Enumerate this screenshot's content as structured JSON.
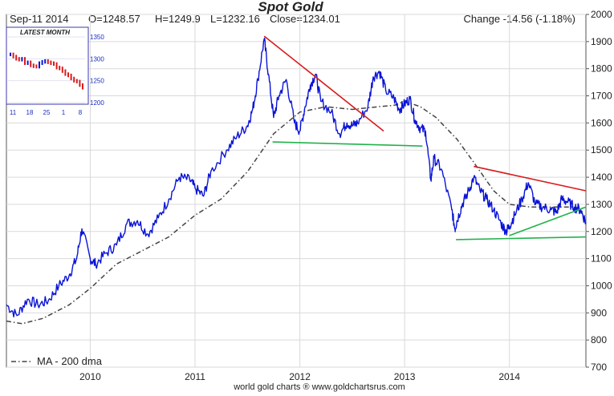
{
  "colors": {
    "price": "#0a14d6",
    "ma": "#444444",
    "resistance": "#d81b1b",
    "support": "#22b24c",
    "title": "#1a2dbf",
    "grid": "#d9d9d9",
    "inset_border": "#3a3ab0"
  },
  "header": {
    "title": "Spot Gold",
    "date": "Sep-11  2014",
    "open": "O=1248.57",
    "high": "H=1249.9",
    "low": "L=1232.16",
    "close": "Close=1234.01",
    "change": "Change -14.56 (-1.18%)"
  },
  "legend": {
    "ma_label": "MA - 200 dma"
  },
  "footer": {
    "credit": "world gold charts ® www.goldchartsrus.com"
  },
  "chart_data": {
    "type": "line",
    "title": "Spot Gold",
    "xlim": [
      2009.2,
      2014.73
    ],
    "ylim": [
      700,
      2000
    ],
    "y_ticks": [
      700,
      800,
      900,
      1000,
      1100,
      1200,
      1300,
      1400,
      1500,
      1600,
      1700,
      1800,
      1900,
      2000
    ],
    "x_tick_labels": [
      {
        "label": "2010",
        "x": 2010.0
      },
      {
        "label": "2011",
        "x": 2011.0
      },
      {
        "label": "2012",
        "x": 2012.0
      },
      {
        "label": "2013",
        "x": 2013.0
      },
      {
        "label": "2014",
        "x": 2014.0
      }
    ],
    "grid": true,
    "series": [
      {
        "kind": "price",
        "points": [
          [
            2009.2,
            930
          ],
          [
            2009.3,
            890
          ],
          [
            2009.4,
            950
          ],
          [
            2009.5,
            930
          ],
          [
            2009.6,
            945
          ],
          [
            2009.7,
            1000
          ],
          [
            2009.8,
            1040
          ],
          [
            2009.87,
            1100
          ],
          [
            2009.92,
            1210
          ],
          [
            2010.0,
            1100
          ],
          [
            2010.05,
            1080
          ],
          [
            2010.15,
            1120
          ],
          [
            2010.25,
            1150
          ],
          [
            2010.35,
            1230
          ],
          [
            2010.45,
            1240
          ],
          [
            2010.55,
            1190
          ],
          [
            2010.65,
            1250
          ],
          [
            2010.75,
            1320
          ],
          [
            2010.85,
            1400
          ],
          [
            2010.95,
            1390
          ],
          [
            2011.0,
            1360
          ],
          [
            2011.08,
            1330
          ],
          [
            2011.15,
            1420
          ],
          [
            2011.3,
            1500
          ],
          [
            2011.4,
            1550
          ],
          [
            2011.5,
            1590
          ],
          [
            2011.55,
            1650
          ],
          [
            2011.6,
            1760
          ],
          [
            2011.66,
            1910
          ],
          [
            2011.7,
            1780
          ],
          [
            2011.75,
            1620
          ],
          [
            2011.8,
            1700
          ],
          [
            2011.87,
            1760
          ],
          [
            2011.95,
            1600
          ],
          [
            2012.0,
            1570
          ],
          [
            2012.05,
            1660
          ],
          [
            2012.1,
            1740
          ],
          [
            2012.15,
            1780
          ],
          [
            2012.2,
            1680
          ],
          [
            2012.3,
            1640
          ],
          [
            2012.38,
            1560
          ],
          [
            2012.45,
            1600
          ],
          [
            2012.5,
            1590
          ],
          [
            2012.55,
            1600
          ],
          [
            2012.65,
            1660
          ],
          [
            2012.7,
            1770
          ],
          [
            2012.76,
            1790
          ],
          [
            2012.82,
            1720
          ],
          [
            2012.9,
            1690
          ],
          [
            2012.95,
            1650
          ],
          [
            2013.0,
            1670
          ],
          [
            2013.05,
            1690
          ],
          [
            2013.1,
            1610
          ],
          [
            2013.15,
            1580
          ],
          [
            2013.2,
            1570
          ],
          [
            2013.25,
            1390
          ],
          [
            2013.28,
            1470
          ],
          [
            2013.35,
            1430
          ],
          [
            2013.45,
            1280
          ],
          [
            2013.48,
            1210
          ],
          [
            2013.5,
            1240
          ],
          [
            2013.55,
            1300
          ],
          [
            2013.6,
            1340
          ],
          [
            2013.66,
            1400
          ],
          [
            2013.72,
            1350
          ],
          [
            2013.78,
            1320
          ],
          [
            2013.85,
            1280
          ],
          [
            2013.92,
            1230
          ],
          [
            2013.97,
            1200
          ],
          [
            2014.0,
            1220
          ],
          [
            2014.05,
            1260
          ],
          [
            2014.12,
            1320
          ],
          [
            2014.18,
            1380
          ],
          [
            2014.25,
            1300
          ],
          [
            2014.32,
            1290
          ],
          [
            2014.4,
            1280
          ],
          [
            2014.45,
            1270
          ],
          [
            2014.5,
            1320
          ],
          [
            2014.55,
            1310
          ],
          [
            2014.62,
            1290
          ],
          [
            2014.68,
            1280
          ],
          [
            2014.73,
            1234
          ]
        ]
      },
      {
        "kind": "ma",
        "name": "MA - 200 dma",
        "points": [
          [
            2009.2,
            870
          ],
          [
            2009.35,
            860
          ],
          [
            2009.55,
            880
          ],
          [
            2009.8,
            930
          ],
          [
            2010.0,
            990
          ],
          [
            2010.25,
            1080
          ],
          [
            2010.5,
            1130
          ],
          [
            2010.75,
            1180
          ],
          [
            2011.0,
            1260
          ],
          [
            2011.25,
            1320
          ],
          [
            2011.5,
            1420
          ],
          [
            2011.75,
            1560
          ],
          [
            2012.0,
            1640
          ],
          [
            2012.25,
            1660
          ],
          [
            2012.5,
            1650
          ],
          [
            2012.75,
            1660
          ],
          [
            2012.9,
            1665
          ],
          [
            2013.0,
            1680
          ],
          [
            2013.15,
            1660
          ],
          [
            2013.3,
            1620
          ],
          [
            2013.5,
            1540
          ],
          [
            2013.65,
            1460
          ],
          [
            2013.85,
            1350
          ],
          [
            2014.0,
            1300
          ],
          [
            2014.2,
            1290
          ],
          [
            2014.4,
            1290
          ],
          [
            2014.6,
            1290
          ],
          [
            2014.73,
            1285
          ]
        ]
      }
    ],
    "trendlines": [
      {
        "kind": "resistance",
        "from": [
          2011.66,
          1920
        ],
        "to": [
          2012.8,
          1570
        ]
      },
      {
        "kind": "support",
        "from": [
          2011.74,
          1530
        ],
        "to": [
          2013.17,
          1515
        ]
      },
      {
        "kind": "resistance",
        "from": [
          2013.66,
          1440
        ],
        "to": [
          2014.73,
          1350
        ]
      },
      {
        "kind": "support",
        "from": [
          2013.49,
          1170
        ],
        "to": [
          2014.73,
          1180
        ]
      },
      {
        "kind": "support",
        "from": [
          2014.0,
          1185
        ],
        "to": [
          2014.73,
          1290
        ]
      }
    ],
    "inset": {
      "title": "LATEST MONTH",
      "ylim": [
        1200,
        1350
      ],
      "y_ticks": [
        1200,
        1250,
        1300,
        1350
      ],
      "x_tick_labels": [
        "11",
        "18",
        "25",
        "1",
        "8"
      ],
      "closes": [
        1310,
        1305,
        1300,
        1298,
        1300,
        1290,
        1292,
        1285,
        1283,
        1282,
        1290,
        1293,
        1295,
        1292,
        1290,
        1288,
        1280,
        1278,
        1272,
        1265,
        1262,
        1255,
        1250,
        1248,
        1240,
        1234
      ]
    }
  }
}
